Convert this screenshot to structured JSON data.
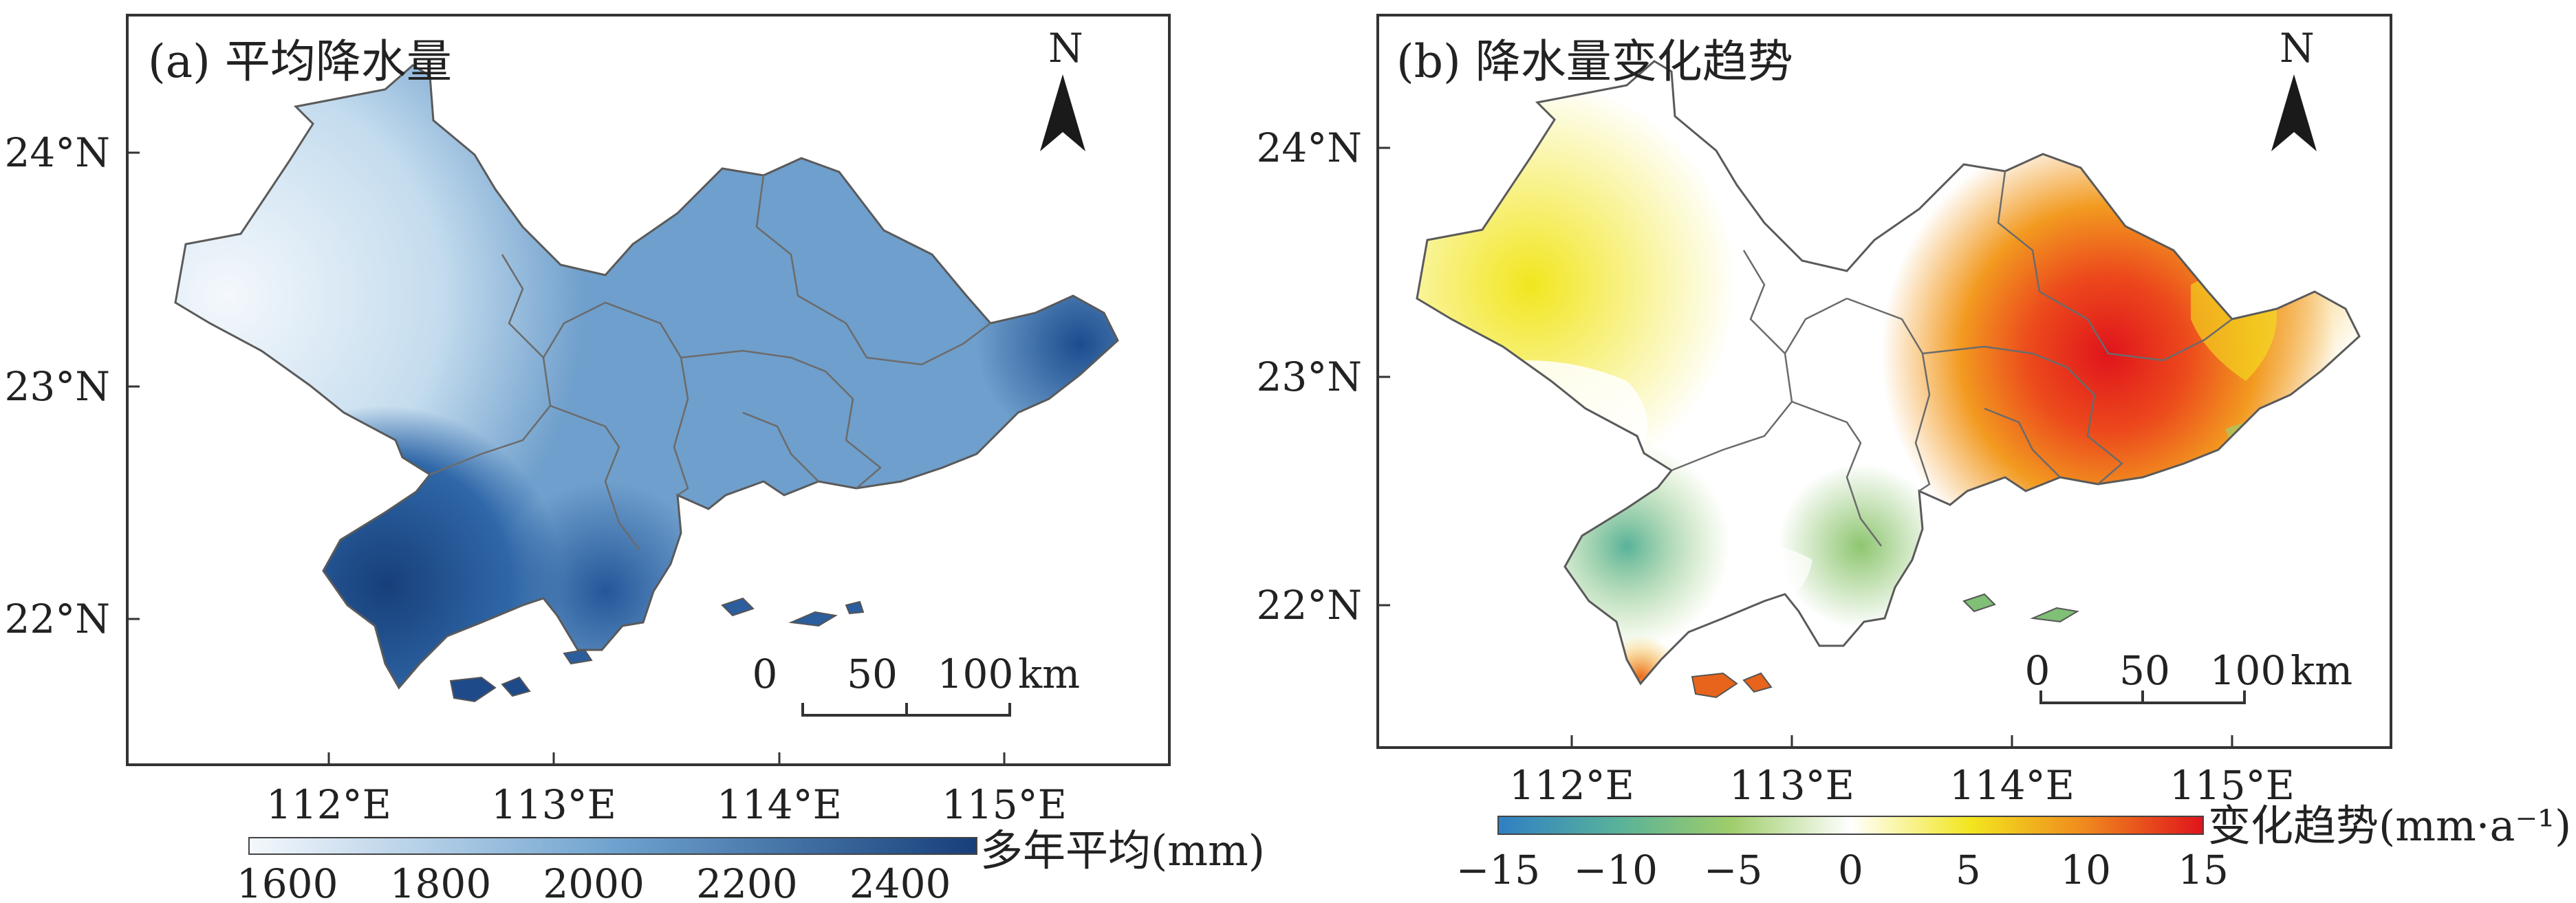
{
  "figure": {
    "panel_a": {
      "title": "(a) 平均降水量",
      "north_label": "N",
      "lat_labels": [
        "24°N",
        "23°N",
        "22°N"
      ],
      "lon_labels": [
        "112°E",
        "113°E",
        "114°E",
        "115°E"
      ],
      "scale_labels": [
        "0",
        "50",
        "100",
        "km"
      ],
      "legend": {
        "label": "多年平均(mm)",
        "ticks": [
          "1600",
          "1800",
          "2000",
          "2200",
          "2400"
        ],
        "color_low": "#f4f8fc",
        "color_mid": "#6fa3cf",
        "color_high": "#173f7a"
      }
    },
    "panel_b": {
      "title": "(b) 降水量变化趋势",
      "north_label": "N",
      "lat_labels": [
        "24°N",
        "23°N",
        "22°N"
      ],
      "lon_labels": [
        "112°E",
        "113°E",
        "114°E",
        "115°E"
      ],
      "scale_labels": [
        "0",
        "50",
        "100",
        "km"
      ],
      "legend": {
        "label": "变化趋势(mm·a⁻¹)",
        "ticks": [
          "−15",
          "−10",
          "−5",
          "0",
          "5",
          "10",
          "15"
        ],
        "colors": [
          "#2f7fc4",
          "#58b29a",
          "#9fcd6a",
          "#ffffff",
          "#f2e61e",
          "#f08a1d",
          "#e0141c"
        ]
      }
    }
  },
  "chart_data": [
    {
      "type": "heatmap",
      "title": "(a) 平均降水量",
      "variable": "多年平均降水量",
      "unit": "mm",
      "colorbar_range": [
        1550,
        2500
      ],
      "colorbar_ticks": [
        1600,
        1800,
        2000,
        2200,
        2400
      ],
      "lon_ticks": [
        112,
        113,
        114,
        115
      ],
      "lat_ticks": [
        22,
        23,
        24
      ],
      "scale_bar_km": [
        0,
        50,
        100
      ]
    },
    {
      "type": "heatmap",
      "title": "(b) 降水量变化趋势",
      "variable": "降水量变化趋势",
      "unit": "mm·a⁻¹",
      "colorbar_range": [
        -15,
        15
      ],
      "colorbar_ticks": [
        -15,
        -10,
        -5,
        0,
        5,
        10,
        15
      ],
      "lon_ticks": [
        112,
        113,
        114,
        115
      ],
      "lat_ticks": [
        22,
        23,
        24
      ],
      "scale_bar_km": [
        0,
        50,
        100
      ]
    }
  ]
}
